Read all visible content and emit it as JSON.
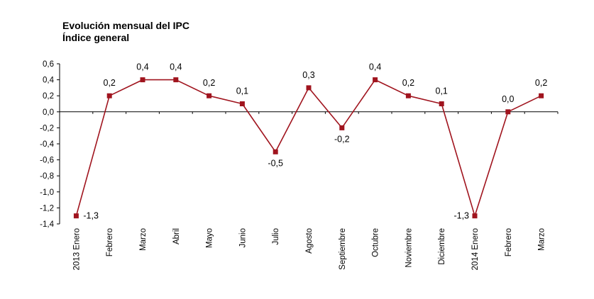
{
  "chart_data": {
    "type": "line",
    "title": "Evolución mensual del IPC",
    "subtitle": "Índice general",
    "categories": [
      "2013 Enero",
      "Febrero",
      "Marzo",
      "Abril",
      "Mayo",
      "Junio",
      "Julio",
      "Agosto",
      "Septiembre",
      "Octubre",
      "Noviembre",
      "Diciembre",
      "2014 Enero",
      "Febrero",
      "Marzo"
    ],
    "values": [
      -1.3,
      0.2,
      0.4,
      0.4,
      0.2,
      0.1,
      -0.5,
      0.3,
      -0.2,
      0.4,
      0.2,
      0.1,
      -1.3,
      0.0,
      0.2
    ],
    "data_labels": [
      "-1,3",
      "0,2",
      "0,4",
      "0,4",
      "0,2",
      "0,1",
      "-0,5",
      "0,3",
      "-0,2",
      "0,4",
      "0,2",
      "0,1",
      "-1,3",
      "0,0",
      "0,2"
    ],
    "ylim": [
      -1.4,
      0.6
    ],
    "yticks": [
      0.6,
      0.4,
      0.2,
      0.0,
      -0.2,
      -0.4,
      -0.6,
      -0.8,
      -1.0,
      -1.2,
      -1.4
    ],
    "ytick_labels": [
      "0,6",
      "0,4",
      "0,2",
      "0,0",
      "-0,2",
      "-0,4",
      "-0,6",
      "-0,8",
      "-1,0",
      "-1,2",
      "-1,4"
    ],
    "xlabel": "",
    "ylabel": "",
    "grid": false,
    "legend": "none",
    "series_color": "#a0141e",
    "marker": "square"
  }
}
